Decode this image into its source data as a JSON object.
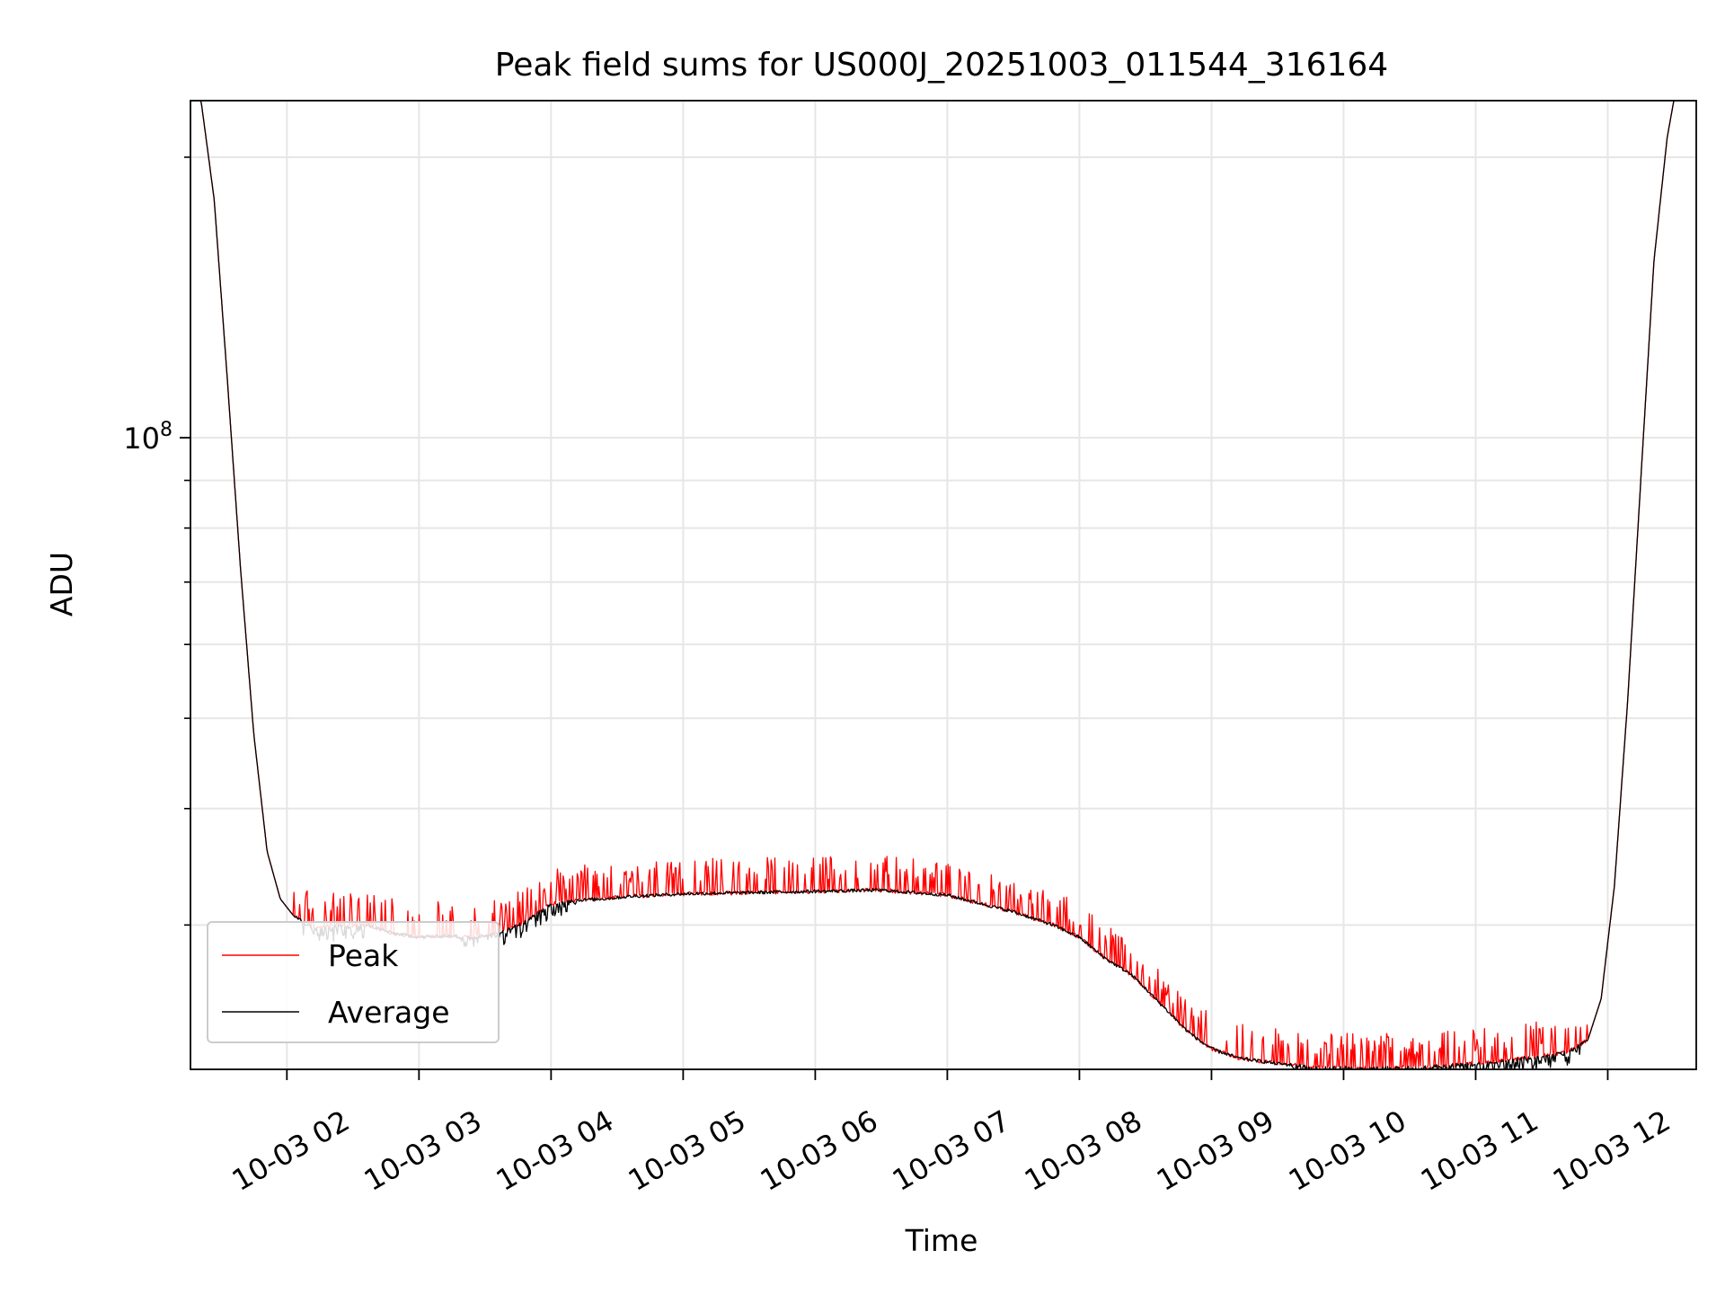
{
  "chart_data": {
    "type": "line",
    "title": "Peak field sums for US000J_20251003_011544_316164",
    "xlabel": "Time",
    "ylabel": "ADU",
    "yscale": "log",
    "grid": true,
    "legend_position": "lower-left",
    "xlim_hours": [
      1.27,
      12.67
    ],
    "ylim": [
      21000000,
      230000000
    ],
    "x_ticks": [
      {
        "hour": 2,
        "label": "10-03 02"
      },
      {
        "hour": 3,
        "label": "10-03 03"
      },
      {
        "hour": 4,
        "label": "10-03 04"
      },
      {
        "hour": 5,
        "label": "10-03 05"
      },
      {
        "hour": 6,
        "label": "10-03 06"
      },
      {
        "hour": 7,
        "label": "10-03 07"
      },
      {
        "hour": 8,
        "label": "10-03 08"
      },
      {
        "hour": 9,
        "label": "10-03 09"
      },
      {
        "hour": 10,
        "label": "10-03 10"
      },
      {
        "hour": 11,
        "label": "10-03 11"
      },
      {
        "hour": 12,
        "label": "10-03 12"
      }
    ],
    "y_major_ticks": [
      {
        "value": 100000000,
        "base": "10",
        "exp": "8"
      }
    ],
    "y_minor_ticks": [
      30000000,
      40000000,
      50000000,
      60000000,
      70000000,
      80000000,
      90000000,
      200000000
    ],
    "series": [
      {
        "name": "Peak",
        "color": "#ff0000",
        "spikes": true,
        "x": [
          1.27,
          1.35,
          1.45,
          1.55,
          1.65,
          1.75,
          1.85,
          1.95,
          2.05,
          2.2,
          2.4,
          2.6,
          2.8,
          3.0,
          3.2,
          3.4,
          3.6,
          3.8,
          4.0,
          4.2,
          4.4,
          4.6,
          5.0,
          5.5,
          6.0,
          6.5,
          7.0,
          7.5,
          7.8,
          8.0,
          8.2,
          8.4,
          8.6,
          8.7,
          8.8,
          8.9,
          9.0,
          9.2,
          9.5,
          9.8,
          10.2,
          10.6,
          11.0,
          11.4,
          11.7,
          11.85,
          11.95,
          12.05,
          12.15,
          12.25,
          12.35,
          12.45,
          12.5,
          12.67
        ],
        "y": [
          230000000,
          230000000,
          180000000,
          115000000,
          72000000,
          48000000,
          36000000,
          32000000,
          30700000,
          29700000,
          29900000,
          30000000,
          29400000,
          29100000,
          29200000,
          29100000,
          29400000,
          30200000,
          31600000,
          31900000,
          32000000,
          32200000,
          32400000,
          32500000,
          32600000,
          32700000,
          32300000,
          31000000,
          30000000,
          29100000,
          27600000,
          26500000,
          24800000,
          24000000,
          23200000,
          22600000,
          22100000,
          21600000,
          21300000,
          21100000,
          21050000,
          21100000,
          21300000,
          21600000,
          21900000,
          22600000,
          25000000,
          33000000,
          52000000,
          90000000,
          155000000,
          210000000,
          230000000,
          230000000
        ]
      },
      {
        "name": "Average",
        "color": "#000000",
        "spikes": false,
        "x": [
          1.27,
          1.35,
          1.45,
          1.55,
          1.65,
          1.75,
          1.85,
          1.95,
          2.05,
          2.2,
          2.4,
          2.6,
          2.8,
          3.0,
          3.2,
          3.4,
          3.6,
          3.8,
          4.0,
          4.2,
          4.4,
          4.6,
          5.0,
          5.5,
          6.0,
          6.5,
          7.0,
          7.5,
          7.8,
          8.0,
          8.2,
          8.4,
          8.6,
          8.7,
          8.8,
          8.9,
          9.0,
          9.2,
          9.5,
          9.8,
          10.2,
          10.6,
          11.0,
          11.4,
          11.7,
          11.85,
          11.95,
          12.05,
          12.15,
          12.25,
          12.35,
          12.45,
          12.5,
          12.67
        ],
        "y": [
          230000000,
          230000000,
          180000000,
          115000000,
          72000000,
          48000000,
          36000000,
          32000000,
          30700000,
          29700000,
          29900000,
          30000000,
          29400000,
          29100000,
          29200000,
          29100000,
          29400000,
          30200000,
          31600000,
          31900000,
          32000000,
          32200000,
          32400000,
          32500000,
          32600000,
          32700000,
          32300000,
          31000000,
          30000000,
          29100000,
          27600000,
          26500000,
          24800000,
          24000000,
          23200000,
          22600000,
          22100000,
          21600000,
          21300000,
          21100000,
          21050000,
          21100000,
          21300000,
          21600000,
          21900000,
          22600000,
          25000000,
          33000000,
          52000000,
          90000000,
          155000000,
          210000000,
          230000000,
          230000000
        ]
      }
    ],
    "legend": [
      {
        "label": "Peak",
        "color": "#ff0000"
      },
      {
        "label": "Average",
        "color": "#000000"
      }
    ]
  }
}
